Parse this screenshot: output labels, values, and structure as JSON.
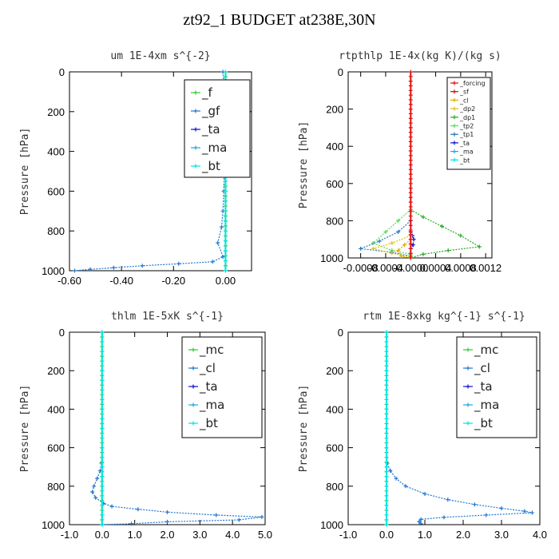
{
  "page": {
    "title": "zt92_1  BUDGET at238E,30N"
  },
  "colors": {
    "f": "#33cc33",
    "gf": "#1f77d4",
    "ta": "#1010d0",
    "ma": "#20a8e0",
    "bt": "#00e6e6",
    "mc": "#33cc33",
    "cl": "#1f77d4",
    "forcing": "#e01010",
    "sf": "#cc1111",
    "dp2": "#e0c020",
    "dp1": "#28a828",
    "tp2": "#55dd55",
    "tp1": "#2a7ab8",
    "cl_small": "#d8b000"
  },
  "chart_data": [
    {
      "type": "line",
      "title": "um   1E-4xm s^{-2}",
      "ylabel": "Pressure [hPa]",
      "xlim": [
        -0.6,
        0.1
      ],
      "ylim": [
        1000,
        0
      ],
      "y_inverted": true,
      "xticks": [
        -0.6,
        -0.4,
        -0.2,
        0.0
      ],
      "xtick_labels": [
        "-0.60",
        "-0.40",
        "-0.20",
        "0.00"
      ],
      "yticks": [
        0,
        200,
        400,
        600,
        800,
        1000
      ],
      "ytick_labels": [
        "0",
        "200",
        "400",
        "600",
        "800",
        "1000"
      ],
      "legend_position": "top-right",
      "legend": [
        "_f",
        "_gf",
        "_ta",
        "_ma",
        "_bt"
      ],
      "series": [
        {
          "name": "_f",
          "color_key": "f",
          "points": [
            [
              0.0,
              0
            ],
            [
              0.0,
              100
            ],
            [
              0.0,
              200
            ],
            [
              0.0,
              300
            ],
            [
              0.0,
              400
            ],
            [
              0.0,
              500
            ],
            [
              0.0,
              600
            ],
            [
              0.0,
              700
            ],
            [
              0.0,
              800
            ],
            [
              0.0,
              900
            ],
            [
              0.0,
              1000
            ]
          ]
        },
        {
          "name": "_gf",
          "color_key": "gf",
          "points": [
            [
              -0.01,
              0
            ],
            [
              -0.005,
              100
            ],
            [
              -0.005,
              200
            ],
            [
              -0.005,
              300
            ],
            [
              -0.005,
              400
            ],
            [
              -0.005,
              500
            ],
            [
              -0.007,
              600
            ],
            [
              -0.01,
              700
            ],
            [
              -0.015,
              780
            ],
            [
              -0.03,
              860
            ],
            [
              -0.01,
              930
            ],
            [
              -0.05,
              955
            ],
            [
              -0.18,
              965
            ],
            [
              -0.32,
              975
            ],
            [
              -0.43,
              985
            ],
            [
              -0.52,
              993
            ],
            [
              -0.58,
              1000
            ]
          ]
        },
        {
          "name": "_bt",
          "color_key": "bt",
          "points": [
            [
              0.0,
              0
            ],
            [
              0.0,
              200
            ],
            [
              0.0,
              400
            ],
            [
              0.0,
              600
            ],
            [
              0.0,
              800
            ],
            [
              0.0,
              1000
            ]
          ]
        }
      ]
    },
    {
      "type": "line",
      "title": "rtpthlp   1E-4x(kg K)/(kg s)",
      "ylabel": "Pressure [hPa]",
      "xlim": [
        -0.001,
        0.0013
      ],
      "ylim": [
        1000,
        0
      ],
      "y_inverted": true,
      "xticks": [
        -0.0008,
        -0.0004,
        0.0,
        0.0004,
        0.0008,
        0.0012
      ],
      "xtick_labels": [
        "-0.0008",
        "-0.0004",
        "-0.0000",
        "0.0004",
        "0.0008",
        "0.0012"
      ],
      "yticks": [
        0,
        200,
        400,
        600,
        800,
        1000
      ],
      "ytick_labels": [
        "0",
        "200",
        "400",
        "600",
        "800",
        "1000"
      ],
      "legend_position": "top-right",
      "legend": [
        "_forcing",
        "_sf",
        "_cl",
        "_dp2",
        "_dp1",
        "_tp2",
        "_tp1",
        "_ta",
        "_ma",
        "_bt"
      ],
      "series": [
        {
          "name": "_forcing",
          "color_key": "forcing",
          "points": [
            [
              0.0,
              0
            ],
            [
              0.0,
              100
            ],
            [
              0.0,
              200
            ],
            [
              0.0,
              300
            ],
            [
              0.0,
              400
            ],
            [
              0.0,
              500
            ],
            [
              0.0,
              600
            ],
            [
              0.0,
              700
            ],
            [
              0.0,
              800
            ],
            [
              0.0,
              900
            ],
            [
              0.0,
              1000
            ]
          ]
        },
        {
          "name": "_dp1",
          "color_key": "dp1",
          "points": [
            [
              0.0,
              740
            ],
            [
              0.0002,
              780
            ],
            [
              0.0005,
              830
            ],
            [
              0.0008,
              880
            ],
            [
              0.0011,
              940
            ],
            [
              0.0006,
              960
            ],
            [
              0.0002,
              980
            ],
            [
              0.0,
              1000
            ]
          ]
        },
        {
          "name": "_tp2",
          "color_key": "tp2",
          "points": [
            [
              0.0,
              740
            ],
            [
              -0.0002,
              800
            ],
            [
              -0.0004,
              860
            ],
            [
              -0.0006,
              920
            ],
            [
              -0.0003,
              960
            ],
            [
              0.0,
              980
            ]
          ]
        },
        {
          "name": "_tp1",
          "color_key": "tp1",
          "points": [
            [
              0.0,
              800
            ],
            [
              -0.0002,
              860
            ],
            [
              -0.0005,
              910
            ],
            [
              -0.0008,
              950
            ],
            [
              -0.0003,
              970
            ],
            [
              0.0,
              990
            ]
          ]
        },
        {
          "name": "_ta",
          "color_key": "ta",
          "points": [
            [
              0.0,
              860
            ],
            [
              3e-05,
              880
            ],
            [
              5e-05,
              900
            ],
            [
              4e-05,
              930
            ],
            [
              0.0,
              950
            ]
          ]
        },
        {
          "name": "_cl",
          "color_key": "cl_small",
          "points": [
            [
              0.0,
              900
            ],
            [
              -0.0001,
              930
            ],
            [
              -0.0002,
              960
            ],
            [
              -0.00015,
              990
            ],
            [
              0.0,
              1000
            ]
          ]
        },
        {
          "name": "_dp2",
          "color_key": "dp2",
          "points": [
            [
              0.0,
              880
            ],
            [
              -0.0003,
              920
            ],
            [
              -0.0006,
              950
            ],
            [
              -0.0003,
              975
            ],
            [
              0.0,
              995
            ]
          ]
        }
      ]
    },
    {
      "type": "line",
      "title": "thlm   1E-5xK s^{-1}",
      "ylabel": "Pressure [hPa]",
      "xlim": [
        -1.0,
        5.0
      ],
      "ylim": [
        1000,
        0
      ],
      "y_inverted": true,
      "xticks": [
        -1.0,
        0.0,
        1.0,
        2.0,
        3.0,
        4.0,
        5.0
      ],
      "xtick_labels": [
        "-1.0",
        "0.0",
        "1.0",
        "2.0",
        "3.0",
        "4.0",
        "5.0"
      ],
      "yticks": [
        0,
        200,
        400,
        600,
        800,
        1000
      ],
      "ytick_labels": [
        "0",
        "200",
        "400",
        "600",
        "800",
        "1000"
      ],
      "legend_position": "top-right",
      "legend": [
        "_mc",
        "_cl",
        "_ta",
        "_ma",
        "_bt"
      ],
      "series": [
        {
          "name": "_mc",
          "color_key": "mc",
          "points": [
            [
              0.0,
              0
            ],
            [
              0.0,
              100
            ],
            [
              0.0,
              200
            ],
            [
              0.0,
              300
            ],
            [
              0.0,
              400
            ],
            [
              0.0,
              500
            ],
            [
              0.0,
              600
            ],
            [
              0.0,
              700
            ],
            [
              0.0,
              800
            ],
            [
              0.0,
              900
            ],
            [
              0.0,
              1000
            ]
          ]
        },
        {
          "name": "_cl",
          "color_key": "cl",
          "points": [
            [
              0.0,
              0
            ],
            [
              0.0,
              200
            ],
            [
              0.0,
              400
            ],
            [
              0.0,
              600
            ],
            [
              -0.02,
              680
            ],
            [
              -0.06,
              720
            ],
            [
              -0.15,
              760
            ],
            [
              -0.25,
              800
            ],
            [
              -0.3,
              830
            ],
            [
              -0.2,
              860
            ],
            [
              0.05,
              890
            ],
            [
              0.3,
              905
            ],
            [
              1.1,
              920
            ],
            [
              2.0,
              935
            ],
            [
              3.5,
              950
            ],
            [
              4.9,
              960
            ],
            [
              4.2,
              975
            ],
            [
              2.0,
              985
            ],
            [
              0.9,
              995
            ],
            [
              0.0,
              1000
            ]
          ]
        },
        {
          "name": "_bt",
          "color_key": "bt",
          "points": [
            [
              0.0,
              0
            ],
            [
              0.0,
              200
            ],
            [
              0.0,
              400
            ],
            [
              0.0,
              600
            ],
            [
              0.0,
              800
            ],
            [
              0.0,
              1000
            ]
          ]
        }
      ]
    },
    {
      "type": "line",
      "title": "rtm   1E-8xkg kg^{-1} s^{-1}",
      "ylabel": "Pressure [hPa]",
      "xlim": [
        -1.0,
        4.0
      ],
      "ylim": [
        1000,
        0
      ],
      "y_inverted": true,
      "xticks": [
        -1.0,
        0.0,
        1.0,
        2.0,
        3.0,
        4.0
      ],
      "xtick_labels": [
        "-1.0",
        "0.0",
        "1.0",
        "2.0",
        "3.0",
        "4.0"
      ],
      "yticks": [
        0,
        200,
        400,
        600,
        800,
        1000
      ],
      "ytick_labels": [
        "0",
        "200",
        "400",
        "600",
        "800",
        "1000"
      ],
      "legend_position": "top-right",
      "legend": [
        "_mc",
        "_cl",
        "_ta",
        "_ma",
        "_bt"
      ],
      "series": [
        {
          "name": "_mc",
          "color_key": "mc",
          "points": [
            [
              0.0,
              0
            ],
            [
              0.0,
              100
            ],
            [
              0.0,
              200
            ],
            [
              0.0,
              300
            ],
            [
              0.0,
              400
            ],
            [
              0.0,
              500
            ],
            [
              0.0,
              600
            ],
            [
              0.0,
              700
            ],
            [
              0.0,
              800
            ],
            [
              0.0,
              900
            ],
            [
              0.0,
              1000
            ]
          ]
        },
        {
          "name": "_cl",
          "color_key": "cl",
          "points": [
            [
              0.0,
              0
            ],
            [
              0.0,
              200
            ],
            [
              0.0,
              400
            ],
            [
              0.0,
              600
            ],
            [
              0.02,
              680
            ],
            [
              0.1,
              720
            ],
            [
              0.25,
              760
            ],
            [
              0.5,
              800
            ],
            [
              1.0,
              840
            ],
            [
              1.6,
              870
            ],
            [
              2.3,
              895
            ],
            [
              3.0,
              915
            ],
            [
              3.6,
              930
            ],
            [
              3.8,
              938
            ],
            [
              2.6,
              950
            ],
            [
              1.5,
              962
            ],
            [
              0.9,
              972
            ],
            [
              0.85,
              985
            ],
            [
              0.9,
              995
            ]
          ]
        },
        {
          "name": "_bt",
          "color_key": "bt",
          "points": [
            [
              0.0,
              0
            ],
            [
              0.0,
              200
            ],
            [
              0.0,
              400
            ],
            [
              0.0,
              600
            ],
            [
              0.0,
              800
            ],
            [
              0.0,
              1000
            ]
          ]
        }
      ]
    }
  ]
}
